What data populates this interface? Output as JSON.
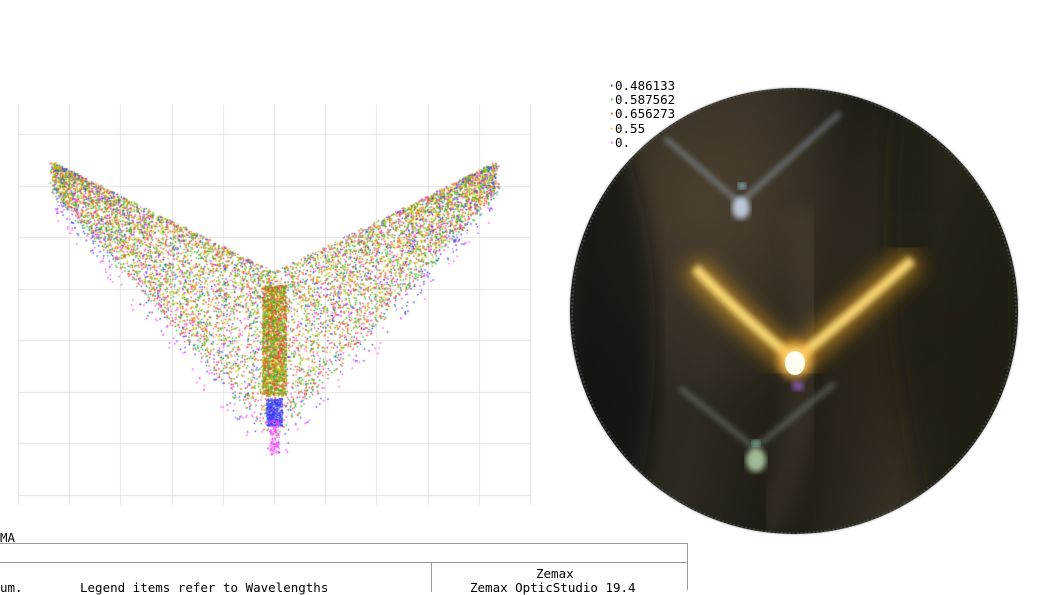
{
  "legend": {
    "items": [
      {
        "label": "0.486133",
        "color": "#3a3aff"
      },
      {
        "label": "0.587562",
        "color": "#2ab52a"
      },
      {
        "label": "0.656273",
        "color": "#ff3a3a"
      },
      {
        "label": "0.55",
        "color": "#e8c000"
      },
      {
        "label": "0.",
        "color": "#ff40ff"
      }
    ]
  },
  "caption": {
    "left_fragment": "MA",
    "footer_left_fragment": "um.",
    "footer_legend": "Legend items refer to Wavelengths",
    "footer_brand": "Zemax",
    "footer_product": "Zemax OpticStudio 19.4"
  },
  "colors": {
    "grid": "#e3e3e3",
    "blue": "#3a3aff",
    "green": "#2ab52a",
    "red": "#ff3a3a",
    "yellow": "#c8c000",
    "magenta": "#ff40ff"
  }
}
